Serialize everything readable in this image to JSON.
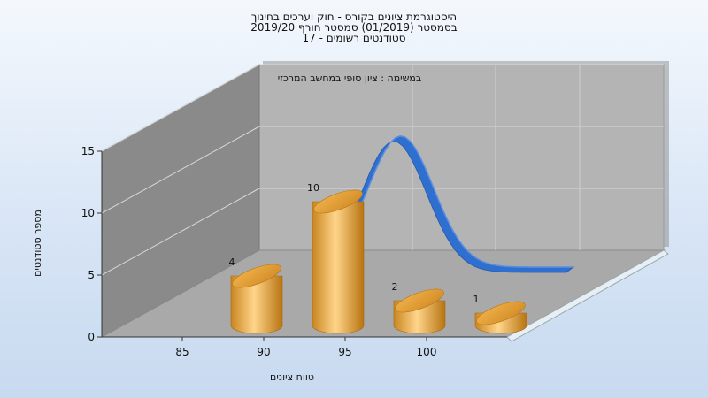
{
  "title_lines": [
    "היסטוגרמת ציונים בקורס - חוק וערכים בחינוך",
    "בסמסטר  (01/2019)  סמסטר חורף 2019/20",
    "סטודנטים רשומים - 17"
  ],
  "annotation": "במשימה : ציון סופי במחשב המרכזי",
  "colors": {
    "bar": "#e8a93f",
    "curve": "#2f6fcf",
    "wall_back": "#b4b4b4",
    "wall_side": "#8a8a8a",
    "floor": "#a9a9a9"
  },
  "chart_data": {
    "type": "bar",
    "title": "היסטוגרמת ציונים בקורס - חוק וערכים בחינוך",
    "xlabel": "טווח ציונים",
    "ylabel": "מספר סטודנטים",
    "x_ticks": [
      85,
      90,
      95,
      100
    ],
    "y_ticks": [
      0,
      5,
      10,
      15
    ],
    "ylim": [
      0,
      15
    ],
    "bars": [
      {
        "x": 87.5,
        "value": 4,
        "label": "4"
      },
      {
        "x": 92.5,
        "value": 10,
        "label": "10"
      },
      {
        "x": 97.5,
        "value": 2,
        "label": "2"
      },
      {
        "x": 102.5,
        "value": 1,
        "label": "1"
      }
    ],
    "curve": {
      "type": "distribution",
      "peak_value": 15.8
    },
    "grid": true
  }
}
